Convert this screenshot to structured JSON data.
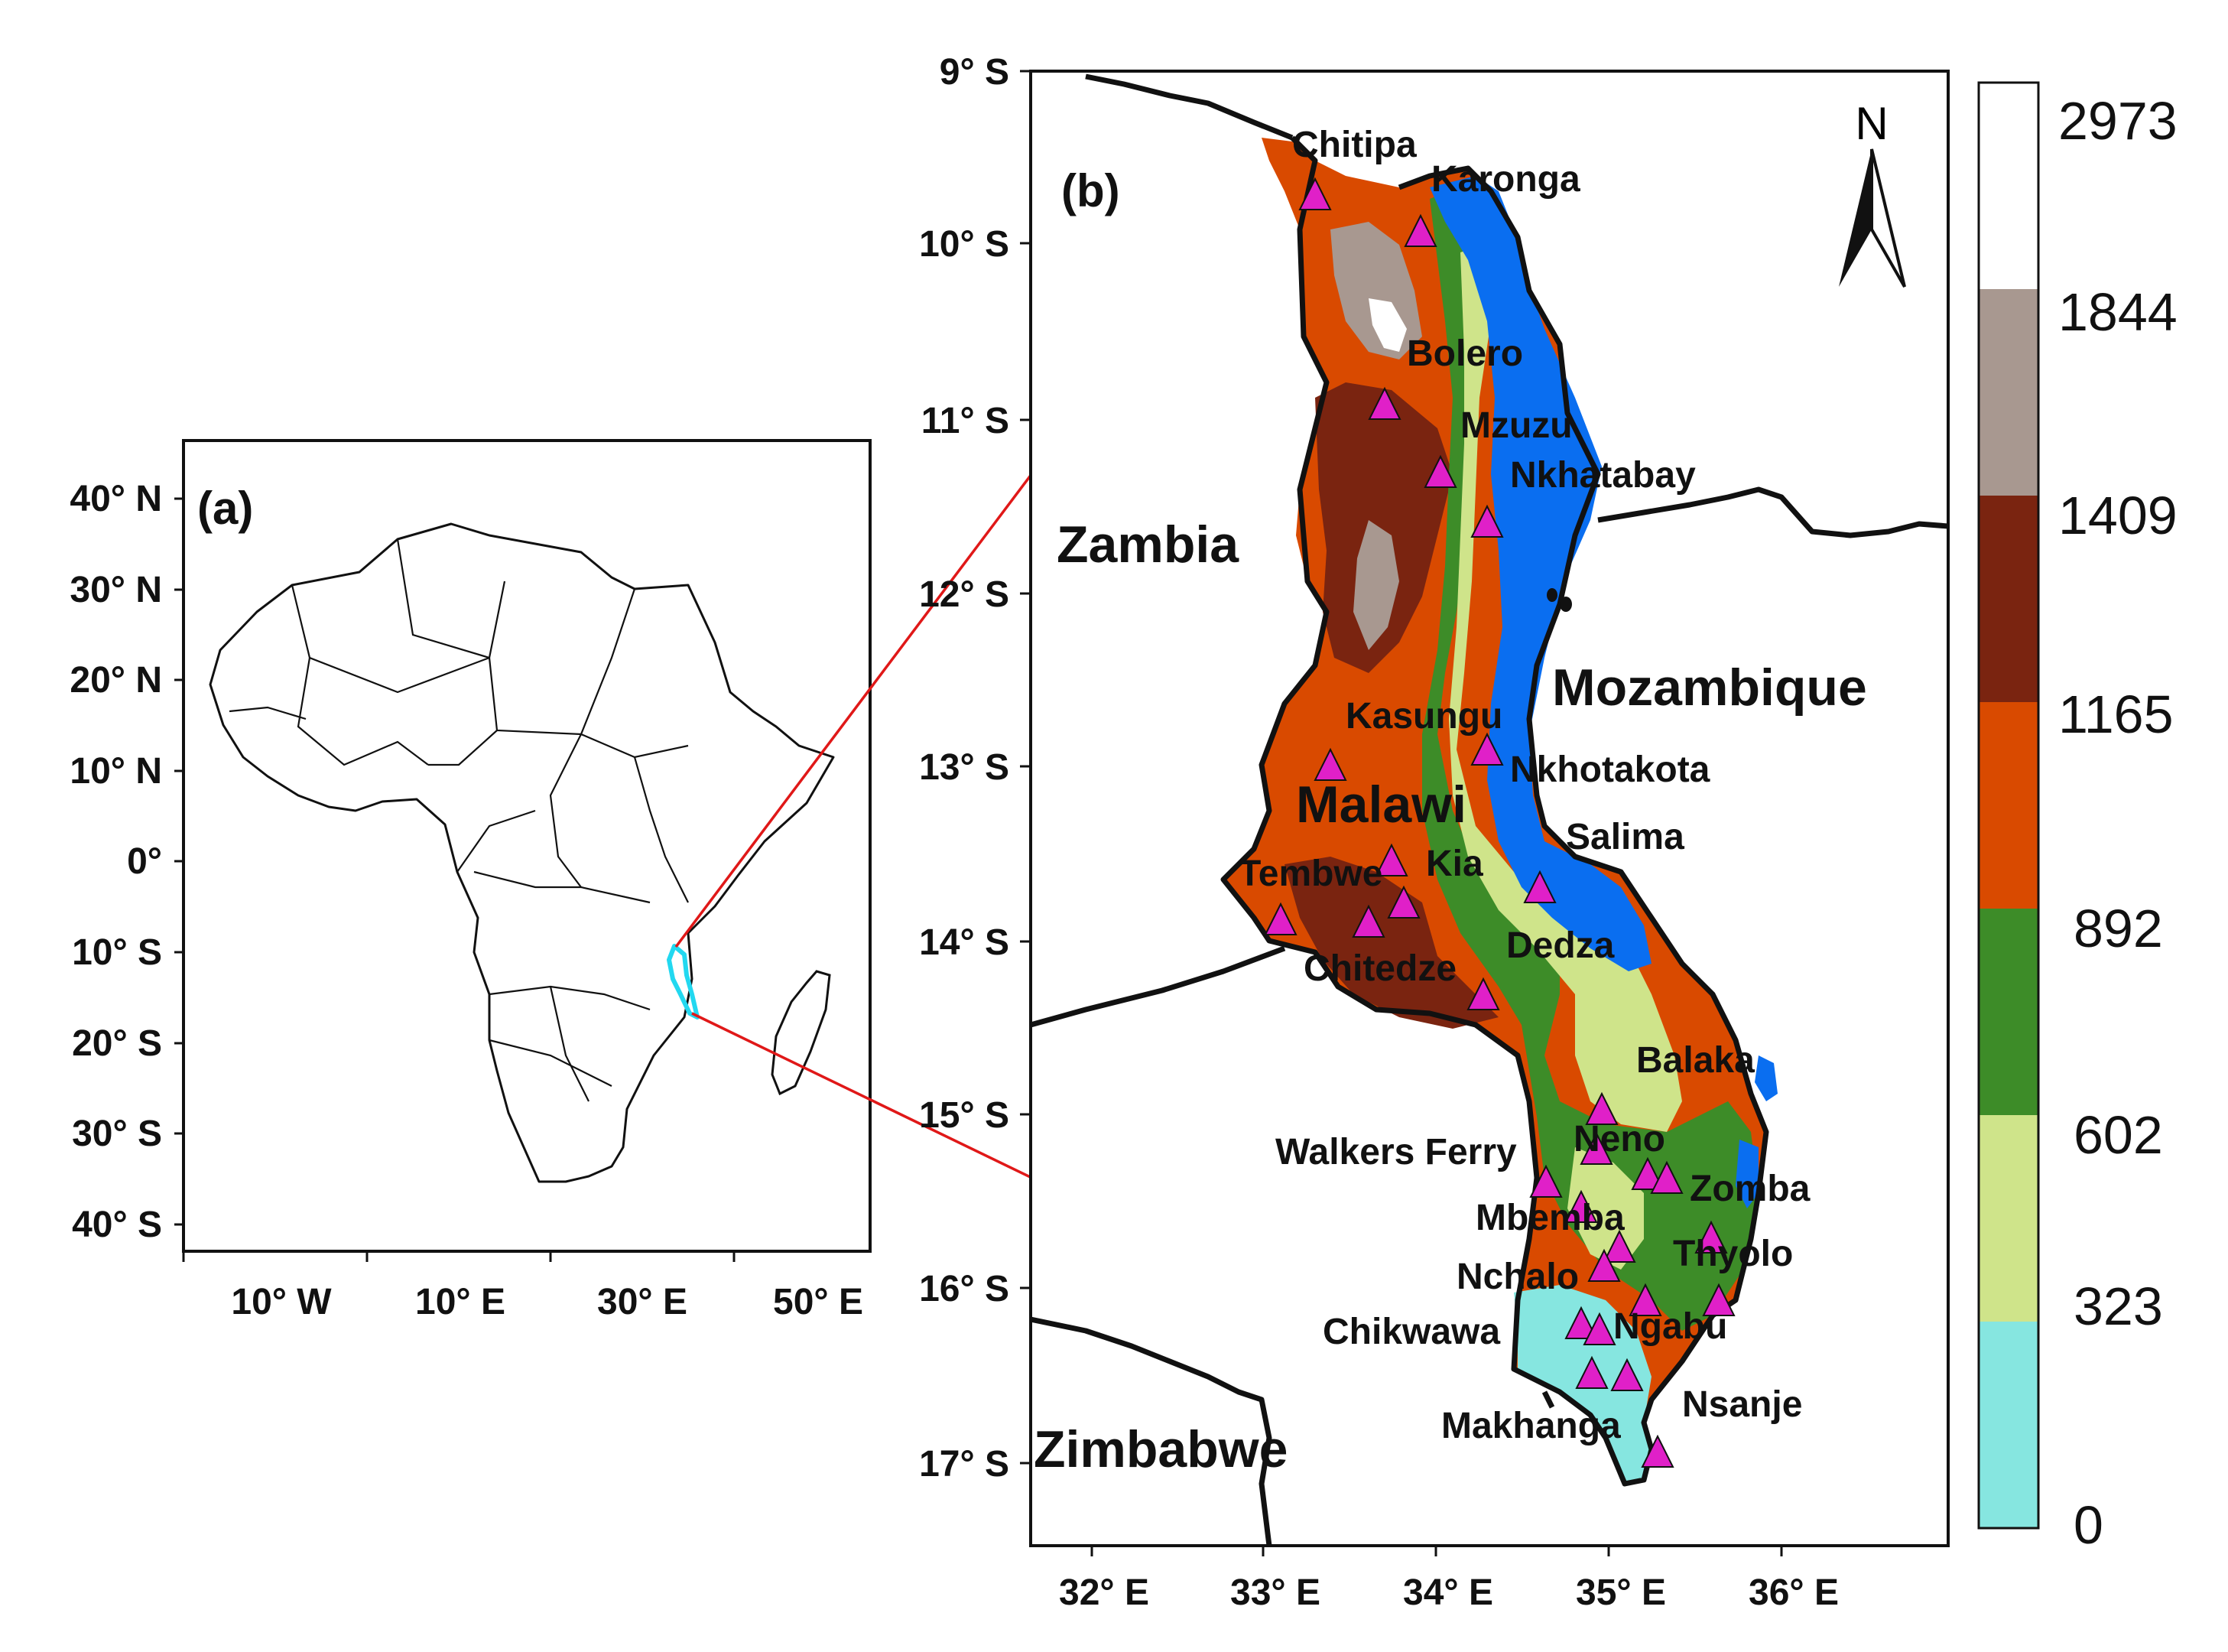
{
  "panel_a": {
    "label": "(a)",
    "lat_ticks": [
      "40° N",
      "30° N",
      "20° N",
      "10° N",
      "0°",
      "10° S",
      "20° S",
      "30° S",
      "40° S"
    ],
    "lon_ticks": [
      "10° W",
      "10° E",
      "30° E",
      "50° E"
    ]
  },
  "panel_b": {
    "label": "(b)",
    "lat_ticks": [
      "9° S",
      "10° S",
      "11° S",
      "12° S",
      "13° S",
      "14° S",
      "15° S",
      "16° S",
      "17° S"
    ],
    "lon_ticks": [
      "32° E",
      "33° E",
      "34° E",
      "35° E",
      "36° E"
    ],
    "north_arrow": "N",
    "countries": [
      "Zambia",
      "Mozambique",
      "Malawi",
      "Zimbabwe"
    ],
    "stations": [
      "Chitipa",
      "Karonga",
      "Bolero",
      "Mzuzu",
      "Nkhatabay",
      "Kasungu",
      "Nkhotakota",
      "Salima",
      "Tembwe",
      "Kia",
      "Chitedze",
      "Dedza",
      "Balaka",
      "Neno",
      "Walkers Ferry",
      "Zomba",
      "Mbemba",
      "Thyolo",
      "Nchalo",
      "Chikwawa",
      "Ngabu",
      "Nsanje",
      "Makhanga"
    ]
  },
  "legend": {
    "breaks": [
      "2973",
      "1844",
      "1409",
      "1165",
      "892",
      "602",
      "323",
      "0"
    ],
    "colors": [
      "#ffffff",
      "#a89890",
      "#7a2410",
      "#d94a00",
      "#3d8c28",
      "#cfe48a",
      "#86e6e0"
    ]
  },
  "colors": {
    "lake": "#0a6ef0",
    "marker": "#e020c8",
    "arrow": "#e01818",
    "outline_highlight": "#22d8f0"
  }
}
